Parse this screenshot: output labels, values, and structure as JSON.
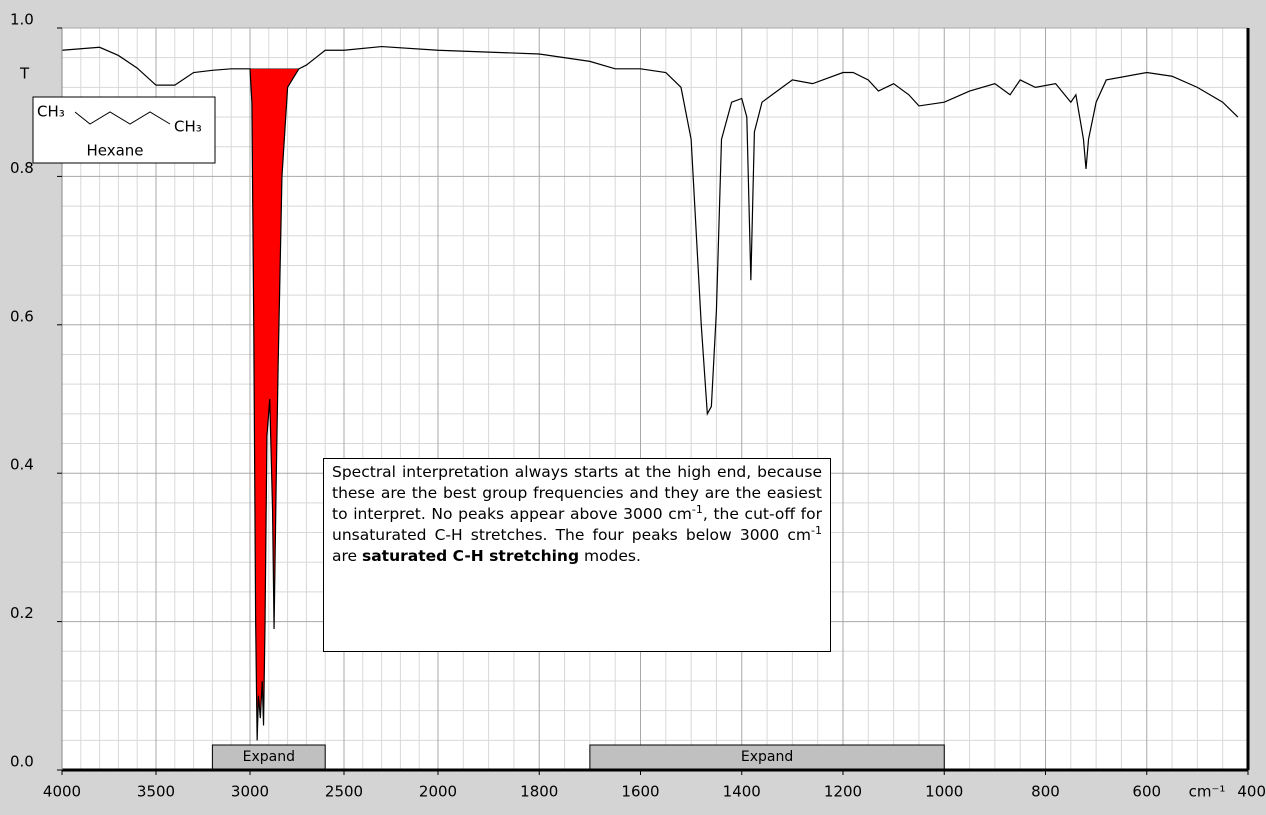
{
  "chart_data": {
    "type": "line",
    "y_label": "T",
    "x_label": "cm⁻¹",
    "xscale_change": 2000,
    "xlim": [
      4000,
      400
    ],
    "xticks": [
      4000,
      3500,
      3000,
      2500,
      2000,
      1800,
      1600,
      1400,
      1200,
      1000,
      800,
      600,
      400
    ],
    "ylim": [
      0,
      1
    ],
    "yticks": [
      {
        "value": 0,
        "label": "0.0"
      },
      0.2,
      0.4,
      0.6,
      0.8,
      {
        "value": 1,
        "label": "1.0"
      }
    ],
    "grid": true,
    "color": "#000000",
    "x": [
      4000,
      3800,
      3700,
      3600,
      3500,
      3400,
      3300,
      3200,
      3100,
      3000,
      2990,
      2980,
      2970,
      2962,
      2955,
      2945,
      2935,
      2928,
      2920,
      2910,
      2895,
      2880,
      2872,
      2860,
      2850,
      2830,
      2800,
      2740,
      2700,
      2650,
      2600,
      2500,
      2300,
      2000,
      1800,
      1700,
      1650,
      1600,
      1550,
      1520,
      1500,
      1480,
      1468,
      1460,
      1450,
      1440,
      1420,
      1400,
      1390,
      1382,
      1375,
      1360,
      1340,
      1300,
      1260,
      1200,
      1180,
      1150,
      1130,
      1100,
      1070,
      1050,
      1000,
      950,
      900,
      870,
      850,
      820,
      780,
      750,
      740,
      725,
      720,
      715,
      700,
      680,
      600,
      550,
      500,
      450,
      420
    ],
    "values": [
      0.97,
      0.974,
      0.963,
      0.946,
      0.923,
      0.923,
      0.94,
      0.943,
      0.945,
      0.945,
      0.9,
      0.6,
      0.2,
      0.04,
      0.1,
      0.07,
      0.12,
      0.06,
      0.2,
      0.45,
      0.5,
      0.35,
      0.19,
      0.4,
      0.55,
      0.8,
      0.92,
      0.945,
      0.95,
      0.96,
      0.97,
      0.97,
      0.975,
      0.97,
      0.965,
      0.955,
      0.945,
      0.945,
      0.94,
      0.92,
      0.85,
      0.6,
      0.48,
      0.49,
      0.62,
      0.85,
      0.9,
      0.905,
      0.88,
      0.66,
      0.86,
      0.9,
      0.91,
      0.93,
      0.925,
      0.94,
      0.94,
      0.93,
      0.915,
      0.925,
      0.91,
      0.895,
      0.9,
      0.915,
      0.925,
      0.91,
      0.93,
      0.92,
      0.925,
      0.9,
      0.91,
      0.85,
      0.81,
      0.85,
      0.9,
      0.93,
      0.94,
      0.935,
      0.92,
      0.9,
      0.88
    ],
    "highlight_range": [
      3100,
      2740
    ],
    "highlight_color": "#ff0000",
    "molecule": {
      "left": "CH₃",
      "right": "CH₃",
      "name": "Hexane"
    },
    "annotation": [
      "Spectral interpretation always starts at the high end, because these are the best group frequencies and they are the easiest to interpret. No peaks appear above 3000 cm",
      "-1",
      ", the cut-off for unsaturated C-H stretches. The four peaks below 3000 cm",
      "-1",
      " are ",
      "saturated C-H stretching",
      " modes."
    ],
    "buttons": [
      {
        "label": "Expand",
        "range": [
          3200,
          2600
        ]
      },
      {
        "label": "Expand",
        "range": [
          1700,
          1000
        ]
      }
    ]
  }
}
